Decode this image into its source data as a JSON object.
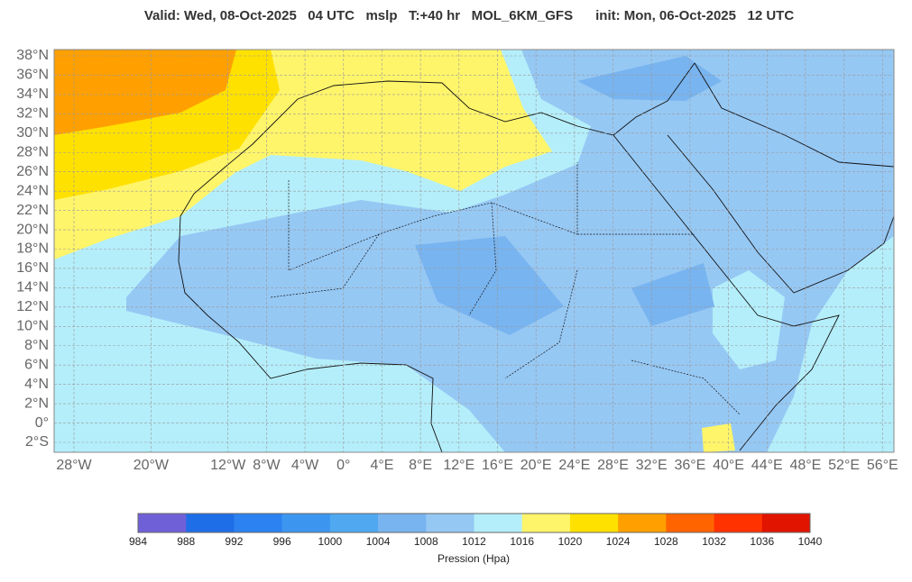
{
  "title": "Valid: Wed, 08-Oct-2025   04 UTC   mslp   T:+40 hr   MOL_6KM_GFS      init: Mon, 06-Oct-2025   12 UTC",
  "map": {
    "lat_ticks": [
      {
        "value": 38,
        "label": "38°N"
      },
      {
        "value": 36,
        "label": "36°N"
      },
      {
        "value": 34,
        "label": "34°N"
      },
      {
        "value": 32,
        "label": "32°N"
      },
      {
        "value": 30,
        "label": "30°N"
      },
      {
        "value": 28,
        "label": "28°N"
      },
      {
        "value": 26,
        "label": "26°N"
      },
      {
        "value": 24,
        "label": "24°N"
      },
      {
        "value": 22,
        "label": "22°N"
      },
      {
        "value": 20,
        "label": "20°N"
      },
      {
        "value": 18,
        "label": "18°N"
      },
      {
        "value": 16,
        "label": "16°N"
      },
      {
        "value": 14,
        "label": "14°N"
      },
      {
        "value": 12,
        "label": "12°N"
      },
      {
        "value": 10,
        "label": "10°N"
      },
      {
        "value": 8,
        "label": "8°N"
      },
      {
        "value": 6,
        "label": "6°N"
      },
      {
        "value": 4,
        "label": "4°N"
      },
      {
        "value": 2,
        "label": "2°N"
      },
      {
        "value": 0,
        "label": "0°"
      },
      {
        "value": -2,
        "label": "2°S"
      }
    ],
    "lon_ticks": [
      {
        "value": -28,
        "label": "28°W"
      },
      {
        "value": -20,
        "label": "20°W"
      },
      {
        "value": -12,
        "label": "12°W"
      },
      {
        "value": -8,
        "label": "8°W"
      },
      {
        "value": -4,
        "label": "4°W"
      },
      {
        "value": 0,
        "label": "0°"
      },
      {
        "value": 4,
        "label": "4°E"
      },
      {
        "value": 8,
        "label": "8°E"
      },
      {
        "value": 12,
        "label": "12°E"
      },
      {
        "value": 16,
        "label": "16°E"
      },
      {
        "value": 20,
        "label": "20°E"
      },
      {
        "value": 24,
        "label": "24°E"
      },
      {
        "value": 28,
        "label": "28°E"
      },
      {
        "value": 32,
        "label": "32°E"
      },
      {
        "value": 36,
        "label": "36°E"
      },
      {
        "value": 40,
        "label": "40°E"
      },
      {
        "value": 44,
        "label": "44°E"
      },
      {
        "value": 48,
        "label": "48°E"
      },
      {
        "value": 52,
        "label": "52°E"
      },
      {
        "value": 56,
        "label": "56°E"
      }
    ]
  },
  "colorbar": {
    "label": "Pression (Hpa)",
    "ticks": [
      "984",
      "988",
      "992",
      "996",
      "1000",
      "1004",
      "1008",
      "1012",
      "1016",
      "1020",
      "1024",
      "1028",
      "1032",
      "1036",
      "1040"
    ],
    "colors": [
      "#7060d8",
      "#1e6ee8",
      "#2c82f0",
      "#3c96f0",
      "#50a8f0",
      "#78b4f0",
      "#96c8f4",
      "#b4eefa",
      "#fff56a",
      "#ffe100",
      "#ffa000",
      "#ff6400",
      "#ff3200",
      "#e11400"
    ]
  }
}
